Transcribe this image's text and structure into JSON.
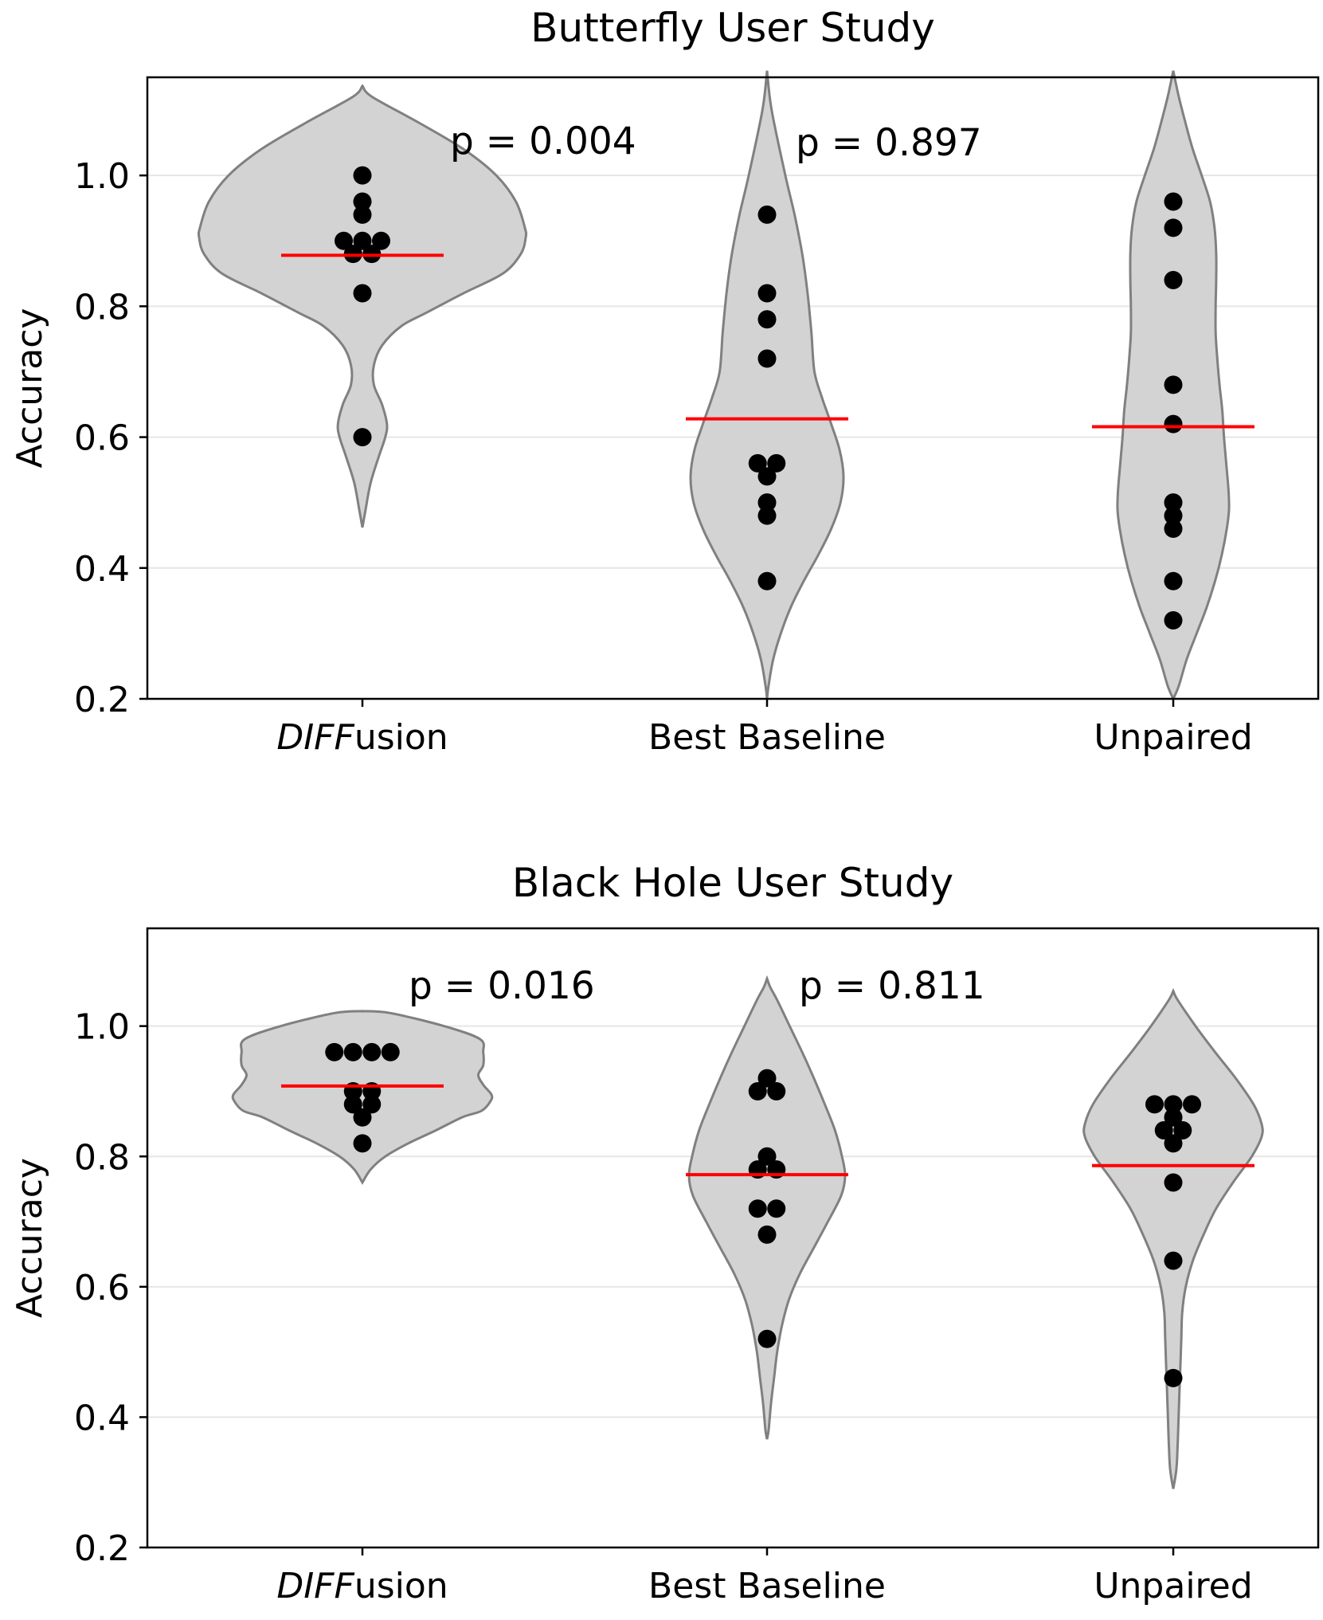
{
  "chart_data": [
    {
      "type": "violin",
      "title": "Butterfly User Study",
      "ylabel": "Accuracy",
      "ylim": [
        0.2,
        1.15
      ],
      "yticks": [
        0.2,
        0.4,
        0.6,
        0.8,
        1.0
      ],
      "ytick_labels": [
        "0.2",
        "0.4",
        "0.6",
        "0.8",
        "1.0"
      ],
      "grid": true,
      "categories": [
        {
          "prefix": "DIFF",
          "suffix": "usion"
        },
        {
          "prefix": "",
          "suffix": "Best Baseline"
        },
        {
          "prefix": "",
          "suffix": "Unpaired"
        }
      ],
      "groups": [
        {
          "points": [
            1.0,
            0.96,
            0.94,
            0.9,
            0.9,
            0.9,
            0.88,
            0.88,
            0.82,
            0.6
          ],
          "mean": 0.878,
          "annotation": "p = 0.004"
        },
        {
          "points": [
            0.94,
            0.82,
            0.78,
            0.72,
            0.56,
            0.56,
            0.54,
            0.5,
            0.48,
            0.38
          ],
          "mean": 0.628,
          "annotation": "p = 0.897"
        },
        {
          "points": [
            0.96,
            0.92,
            0.84,
            0.68,
            0.62,
            0.5,
            0.48,
            0.46,
            0.38,
            0.32
          ],
          "mean": 0.616,
          "annotation": ""
        }
      ],
      "colors": {
        "violin_fill": "#d3d3d3",
        "violin_edge": "#808080",
        "mean_line": "#ff0000",
        "points": "#000000"
      }
    },
    {
      "type": "violin",
      "title": "Black Hole User Study",
      "ylabel": "Accuracy",
      "ylim": [
        0.2,
        1.15
      ],
      "yticks": [
        0.2,
        0.4,
        0.6,
        0.8,
        1.0
      ],
      "ytick_labels": [
        "0.2",
        "0.4",
        "0.6",
        "0.8",
        "1.0"
      ],
      "grid": true,
      "categories": [
        {
          "prefix": "DIFF",
          "suffix": "usion"
        },
        {
          "prefix": "",
          "suffix": "Best Baseline"
        },
        {
          "prefix": "",
          "suffix": "Unpaired"
        }
      ],
      "groups": [
        {
          "points": [
            0.96,
            0.96,
            0.96,
            0.96,
            0.9,
            0.9,
            0.88,
            0.88,
            0.86,
            0.82
          ],
          "mean": 0.908,
          "annotation": "p = 0.016"
        },
        {
          "points": [
            0.92,
            0.9,
            0.9,
            0.8,
            0.78,
            0.78,
            0.72,
            0.72,
            0.68,
            0.52
          ],
          "mean": 0.772,
          "annotation": "p = 0.811"
        },
        {
          "points": [
            0.88,
            0.88,
            0.88,
            0.86,
            0.84,
            0.84,
            0.82,
            0.76,
            0.64,
            0.46
          ],
          "mean": 0.786,
          "annotation": ""
        }
      ],
      "colors": {
        "violin_fill": "#d3d3d3",
        "violin_edge": "#808080",
        "mean_line": "#ff0000",
        "points": "#000000"
      }
    }
  ]
}
